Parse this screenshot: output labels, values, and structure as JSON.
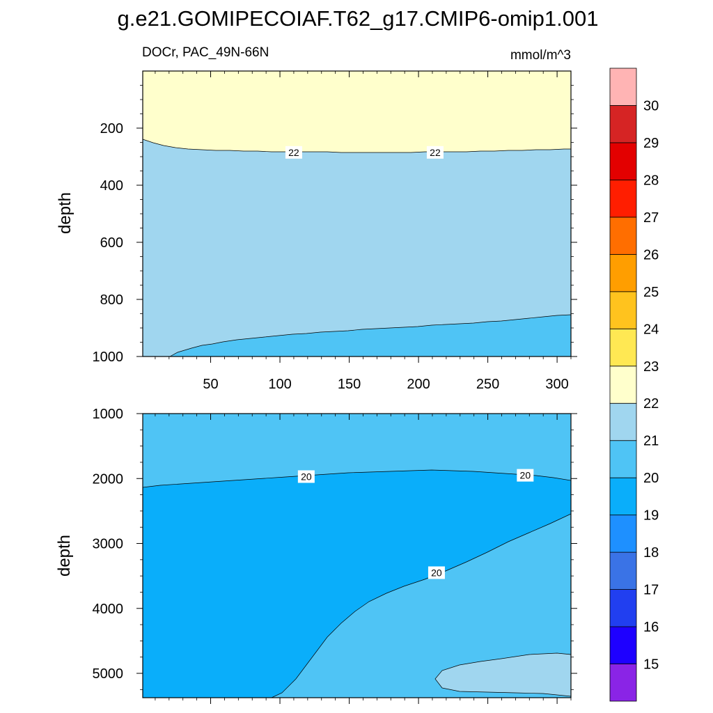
{
  "title": "g.e21.GOMIPECOIAF.T62_g17.CMIP6-omip1.001",
  "subtitle_left": "DOCr, PAC_49N-66N",
  "subtitle_right": "mmol/m^3",
  "chart_data": {
    "type": "contour",
    "variable": "DOCr",
    "region": "PAC_49N-66N",
    "units": "mmol/m^3",
    "x": {
      "label": "",
      "range": [
        1,
        310
      ],
      "ticks": [
        50,
        100,
        150,
        200,
        250,
        300
      ],
      "tick_labels": [
        "50",
        "100",
        "150",
        "200",
        "250",
        "300"
      ]
    },
    "panels": [
      {
        "name": "upper",
        "ylabel": "depth",
        "ylim": [
          0,
          1000
        ],
        "y_ticks": [
          200,
          400,
          600,
          800,
          1000
        ],
        "y_tick_labels": [
          "200",
          "400",
          "600",
          "800",
          "1000"
        ],
        "contour_labels": [
          {
            "text": "22",
            "x": 110,
            "depth": 285
          },
          {
            "text": "22",
            "x": 212,
            "depth": 285
          }
        ],
        "regions": [
          {
            "range": "22-23",
            "color": "#FFFFCC",
            "description": "surface layer above ~250-300 m"
          },
          {
            "range": "21-22",
            "color": "#A0D6EF",
            "description": "~250 m to ~850-1000 m"
          },
          {
            "range": "20-21",
            "color": "#4FC4F5",
            "description": "below ~850-1000 m, deepening toward x=1"
          }
        ]
      },
      {
        "name": "lower",
        "ylabel": "depth",
        "ylim": [
          1000,
          5375
        ],
        "y_ticks": [
          1000,
          2000,
          3000,
          4000,
          5000
        ],
        "y_tick_labels": [
          "1000",
          "2000",
          "3000",
          "4000",
          "5000"
        ],
        "contour_labels": [
          {
            "text": "20",
            "x": 119,
            "depth": 1970
          },
          {
            "text": "20",
            "x": 277,
            "depth": 1950
          },
          {
            "text": "20",
            "x": 213,
            "depth": 3450
          }
        ],
        "regions": [
          {
            "range": "20-21",
            "color": "#4FC4F5",
            "description": "1000 m to ~2000 m and lower-right deep wedge"
          },
          {
            "range": "19-20",
            "color": "#0AAEFA",
            "description": "core water mass below ~2000 m"
          },
          {
            "range": "21-22",
            "color": "#A0D6EF",
            "description": "bottom patch, x ~210-310, depth ~4700-5300 m"
          }
        ]
      }
    ],
    "colorbar": {
      "levels": [
        "15",
        "16",
        "17",
        "18",
        "19",
        "20",
        "21",
        "22",
        "23",
        "24",
        "25",
        "26",
        "27",
        "28",
        "29",
        "30"
      ],
      "colors": [
        "#8A24E6",
        "#1E00FF",
        "#213FF0",
        "#3A73E6",
        "#1E90FF",
        "#0AAEFA",
        "#4FC4F5",
        "#A0D6EF",
        "#FFFFCC",
        "#FFE853",
        "#FFC31E",
        "#FF9E00",
        "#FF6E00",
        "#FF1E00",
        "#E30000",
        "#D62424",
        "#FFB4B4"
      ]
    }
  }
}
